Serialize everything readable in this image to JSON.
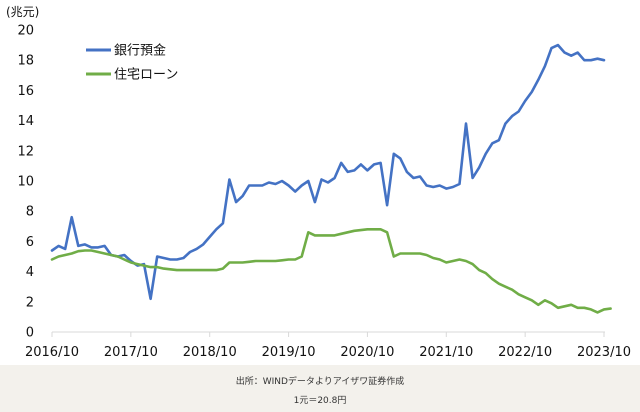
{
  "chart_data": {
    "type": "line",
    "ylabel": "(兆元)",
    "ylim": [
      0,
      20
    ],
    "yticks": [
      0,
      2,
      4,
      6,
      8,
      10,
      12,
      14,
      16,
      18,
      20
    ],
    "xlim": [
      2016.833,
      2023.833
    ],
    "xticks": [
      {
        "value": 2016.833,
        "label": "2016/10"
      },
      {
        "value": 2017.833,
        "label": "2017/10"
      },
      {
        "value": 2018.833,
        "label": "2018/10"
      },
      {
        "value": 2019.833,
        "label": "2019/10"
      },
      {
        "value": 2020.833,
        "label": "2020/10"
      },
      {
        "value": 2021.833,
        "label": "2021/10"
      },
      {
        "value": 2022.833,
        "label": "2022/10"
      },
      {
        "value": 2023.833,
        "label": "2023/10"
      }
    ],
    "legend_position": "top-left",
    "grid": false,
    "series": [
      {
        "name": "銀行預金",
        "color": "#4472c4",
        "points": [
          [
            2016.833,
            5.4
          ],
          [
            2016.917,
            5.7
          ],
          [
            2017.0,
            5.5
          ],
          [
            2017.083,
            7.6
          ],
          [
            2017.167,
            5.7
          ],
          [
            2017.25,
            5.8
          ],
          [
            2017.333,
            5.6
          ],
          [
            2017.417,
            5.6
          ],
          [
            2017.5,
            5.7
          ],
          [
            2017.583,
            5.1
          ],
          [
            2017.667,
            5.0
          ],
          [
            2017.75,
            5.1
          ],
          [
            2017.833,
            4.7
          ],
          [
            2017.917,
            4.4
          ],
          [
            2018.0,
            4.5
          ],
          [
            2018.083,
            2.2
          ],
          [
            2018.167,
            5.0
          ],
          [
            2018.25,
            4.9
          ],
          [
            2018.333,
            4.8
          ],
          [
            2018.417,
            4.8
          ],
          [
            2018.5,
            4.9
          ],
          [
            2018.583,
            5.3
          ],
          [
            2018.667,
            5.5
          ],
          [
            2018.75,
            5.8
          ],
          [
            2018.833,
            6.3
          ],
          [
            2018.917,
            6.8
          ],
          [
            2019.0,
            7.2
          ],
          [
            2019.083,
            10.1
          ],
          [
            2019.167,
            8.6
          ],
          [
            2019.25,
            9.0
          ],
          [
            2019.333,
            9.7
          ],
          [
            2019.417,
            9.7
          ],
          [
            2019.5,
            9.7
          ],
          [
            2019.583,
            9.9
          ],
          [
            2019.667,
            9.8
          ],
          [
            2019.75,
            10.0
          ],
          [
            2019.833,
            9.7
          ],
          [
            2019.917,
            9.3
          ],
          [
            2020.0,
            9.7
          ],
          [
            2020.083,
            10.0
          ],
          [
            2020.167,
            8.6
          ],
          [
            2020.25,
            10.1
          ],
          [
            2020.333,
            9.9
          ],
          [
            2020.417,
            10.2
          ],
          [
            2020.5,
            11.2
          ],
          [
            2020.583,
            10.6
          ],
          [
            2020.667,
            10.7
          ],
          [
            2020.75,
            11.1
          ],
          [
            2020.833,
            10.7
          ],
          [
            2020.917,
            11.1
          ],
          [
            2021.0,
            11.2
          ],
          [
            2021.083,
            8.4
          ],
          [
            2021.167,
            11.8
          ],
          [
            2021.25,
            11.5
          ],
          [
            2021.333,
            10.6
          ],
          [
            2021.417,
            10.2
          ],
          [
            2021.5,
            10.3
          ],
          [
            2021.583,
            9.7
          ],
          [
            2021.667,
            9.6
          ],
          [
            2021.75,
            9.7
          ],
          [
            2021.833,
            9.5
          ],
          [
            2021.917,
            9.6
          ],
          [
            2022.0,
            9.8
          ],
          [
            2022.083,
            13.8
          ],
          [
            2022.167,
            10.2
          ],
          [
            2022.25,
            10.9
          ],
          [
            2022.333,
            11.8
          ],
          [
            2022.417,
            12.5
          ],
          [
            2022.5,
            12.7
          ],
          [
            2022.583,
            13.8
          ],
          [
            2022.667,
            14.3
          ],
          [
            2022.75,
            14.6
          ],
          [
            2022.833,
            15.3
          ],
          [
            2022.917,
            15.9
          ],
          [
            2023.0,
            16.7
          ],
          [
            2023.083,
            17.6
          ],
          [
            2023.167,
            18.8
          ],
          [
            2023.25,
            19.0
          ],
          [
            2023.333,
            18.5
          ],
          [
            2023.417,
            18.3
          ],
          [
            2023.5,
            18.5
          ],
          [
            2023.583,
            18.0
          ],
          [
            2023.667,
            18.0
          ],
          [
            2023.75,
            18.1
          ],
          [
            2023.833,
            18.0
          ]
        ]
      },
      {
        "name": "住宅ローン",
        "color": "#70ad47",
        "points": [
          [
            2016.833,
            4.8
          ],
          [
            2016.917,
            5.0
          ],
          [
            2017.0,
            5.1
          ],
          [
            2017.083,
            5.2
          ],
          [
            2017.167,
            5.35
          ],
          [
            2017.25,
            5.4
          ],
          [
            2017.333,
            5.4
          ],
          [
            2017.417,
            5.3
          ],
          [
            2017.5,
            5.2
          ],
          [
            2017.583,
            5.1
          ],
          [
            2017.667,
            5.0
          ],
          [
            2017.75,
            4.8
          ],
          [
            2017.833,
            4.6
          ],
          [
            2017.917,
            4.5
          ],
          [
            2018.0,
            4.4
          ],
          [
            2018.083,
            4.3
          ],
          [
            2018.167,
            4.3
          ],
          [
            2018.25,
            4.2
          ],
          [
            2018.333,
            4.15
          ],
          [
            2018.417,
            4.1
          ],
          [
            2018.5,
            4.1
          ],
          [
            2018.583,
            4.1
          ],
          [
            2018.667,
            4.1
          ],
          [
            2018.75,
            4.1
          ],
          [
            2018.833,
            4.1
          ],
          [
            2018.917,
            4.1
          ],
          [
            2019.0,
            4.2
          ],
          [
            2019.083,
            4.6
          ],
          [
            2019.167,
            4.6
          ],
          [
            2019.25,
            4.6
          ],
          [
            2019.333,
            4.65
          ],
          [
            2019.417,
            4.7
          ],
          [
            2019.5,
            4.7
          ],
          [
            2019.583,
            4.7
          ],
          [
            2019.667,
            4.7
          ],
          [
            2019.75,
            4.75
          ],
          [
            2019.833,
            4.8
          ],
          [
            2019.917,
            4.8
          ],
          [
            2020.0,
            5.0
          ],
          [
            2020.083,
            6.6
          ],
          [
            2020.167,
            6.4
          ],
          [
            2020.25,
            6.4
          ],
          [
            2020.333,
            6.4
          ],
          [
            2020.417,
            6.4
          ],
          [
            2020.5,
            6.5
          ],
          [
            2020.583,
            6.6
          ],
          [
            2020.667,
            6.7
          ],
          [
            2020.75,
            6.75
          ],
          [
            2020.833,
            6.8
          ],
          [
            2020.917,
            6.8
          ],
          [
            2021.0,
            6.8
          ],
          [
            2021.083,
            6.6
          ],
          [
            2021.167,
            5.0
          ],
          [
            2021.25,
            5.2
          ],
          [
            2021.333,
            5.2
          ],
          [
            2021.417,
            5.2
          ],
          [
            2021.5,
            5.2
          ],
          [
            2021.583,
            5.1
          ],
          [
            2021.667,
            4.9
          ],
          [
            2021.75,
            4.8
          ],
          [
            2021.833,
            4.6
          ],
          [
            2021.917,
            4.7
          ],
          [
            2022.0,
            4.8
          ],
          [
            2022.083,
            4.7
          ],
          [
            2022.167,
            4.5
          ],
          [
            2022.25,
            4.1
          ],
          [
            2022.333,
            3.9
          ],
          [
            2022.417,
            3.5
          ],
          [
            2022.5,
            3.2
          ],
          [
            2022.583,
            3.0
          ],
          [
            2022.667,
            2.8
          ],
          [
            2022.75,
            2.5
          ],
          [
            2022.833,
            2.3
          ],
          [
            2022.917,
            2.1
          ],
          [
            2023.0,
            1.8
          ],
          [
            2023.083,
            2.1
          ],
          [
            2023.167,
            1.9
          ],
          [
            2023.25,
            1.6
          ],
          [
            2023.333,
            1.7
          ],
          [
            2023.417,
            1.8
          ],
          [
            2023.5,
            1.6
          ],
          [
            2023.583,
            1.6
          ],
          [
            2023.667,
            1.5
          ],
          [
            2023.75,
            1.3
          ],
          [
            2023.833,
            1.5
          ],
          [
            2023.917,
            1.55
          ]
        ]
      }
    ]
  },
  "footer": {
    "source": "出所：WINDデータよりアイザワ証券作成",
    "rate": "1元＝20.8円"
  }
}
